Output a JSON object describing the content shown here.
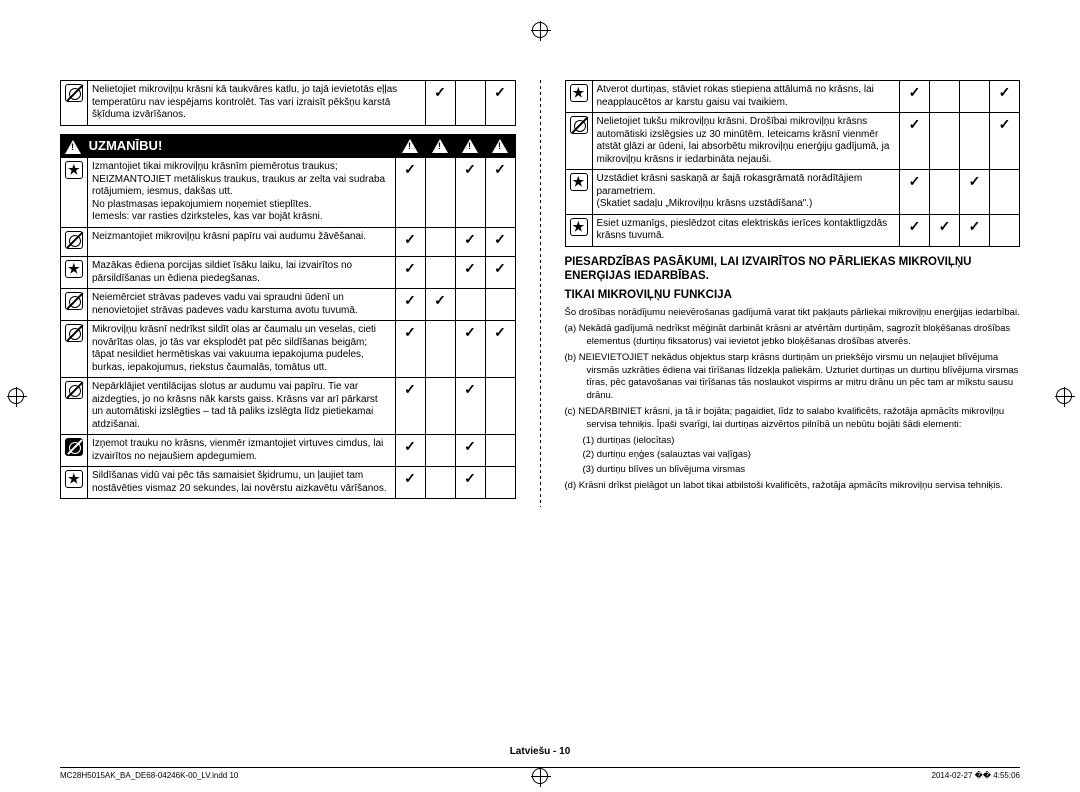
{
  "left": {
    "row0": {
      "text": "Nelietojiet mikroviļņu krāsni kā taukvāres katlu, jo tajā ievietotās eļļas temperatūru nav iespējams kontrolēt. Tas vari izraisīt pēkšņu karstā šķīduma izvārīšanos.",
      "c1": "✓",
      "c2": "",
      "c3": "✓"
    },
    "caution": "UZMANĪBU!",
    "rows": [
      {
        "icon": "star",
        "text": "Izmantojiet tikai mikroviļņu krāsnīm piemērotus traukus; NEIZMANTOJIET metāliskus traukus, traukus ar zelta vai sudraba rotājumiem, iesmus, dakšas utt.\nNo plastmasas iepakojumiem noņemiet stieplītes.\nIemesls: var rasties dzirksteles, kas var bojāt krāsni.",
        "c1": "✓",
        "c2": "",
        "c3": "✓",
        "c4": "✓"
      },
      {
        "icon": "prohibit",
        "text": "Neizmantojiet mikroviļņu krāsni papīru vai audumu žāvēšanai.",
        "c1": "✓",
        "c2": "",
        "c3": "✓",
        "c4": "✓"
      },
      {
        "icon": "star",
        "text": "Mazākas ēdiena porcijas sildiet īsāku laiku, lai izvairītos no pārsildīšanas un ēdiena piedegšanas.",
        "c1": "✓",
        "c2": "",
        "c3": "✓",
        "c4": "✓"
      },
      {
        "icon": "prohibit",
        "text": "Neiemērciet strāvas padeves vadu vai spraudni ūdenī un nenovietojiet strāvas padeves vadu karstuma avotu tuvumā.",
        "c1": "✓",
        "c2": "✓",
        "c3": "",
        "c4": ""
      },
      {
        "icon": "prohibit",
        "text": "Mikroviļņu krāsnī nedrīkst sildīt olas ar čaumalu un veselas, cieti novārītas olas, jo tās var eksplodēt pat pēc sildīšanas beigām; tāpat nesildiet hermētiskas vai vakuuma iepakojuma pudeles, burkas, iepakojumus, riekstus čaumalās, tomātus utt.",
        "c1": "✓",
        "c2": "",
        "c3": "✓",
        "c4": "✓"
      },
      {
        "icon": "prohibit",
        "text": "Nepārklājiet ventilācijas slotus ar audumu vai papīru. Tie var aizdegties, jo no krāsns nāk karsts gaiss. Krāsns var arī pārkarst un automātiski izslēgties – tad tā paliks izslēgta līdz pietiekamai atdzišanai.",
        "c1": "✓",
        "c2": "",
        "c3": "✓",
        "c4": ""
      },
      {
        "icon": "prohibit-filled",
        "text": "Izņemot trauku no krāsns, vienmēr izmantojiet virtuves cimdus, lai izvairītos no nejaušiem apdegumiem.",
        "c1": "✓",
        "c2": "",
        "c3": "✓",
        "c4": ""
      },
      {
        "icon": "star",
        "text": "Sildīšanas vidū vai pēc tās samaisiet šķidrumu, un ļaujiet tam nostāvēties vismaz 20 sekundes, lai novērstu aizkavētu vārīšanos.",
        "c1": "✓",
        "c2": "",
        "c3": "✓",
        "c4": ""
      }
    ]
  },
  "right": {
    "rows": [
      {
        "icon": "star",
        "text": "Atverot durtiņas, stāviet rokas stiepiena attālumā no krāsns, lai neapplaucētos ar karstu gaisu vai tvaikiem.",
        "c1": "✓",
        "c2": "",
        "c3": "",
        "c4": "✓"
      },
      {
        "icon": "prohibit",
        "text": "Nelietojiet tukšu mikroviļņu krāsni. Drošībai mikroviļņu krāsns automātiski izslēgsies uz 30 minūtēm. Ieteicams krāsnī vienmēr atstāt glāzi ar ūdeni, lai absorbētu mikroviļņu enerģiju gadījumā, ja mikroviļņu krāsns ir iedarbināta nejauši.",
        "c1": "✓",
        "c2": "",
        "c3": "",
        "c4": "✓"
      },
      {
        "icon": "star",
        "text": "Uzstādiet krāsni saskaņā ar šajā rokasgrāmatā norādītājiem parametriem.\n(Skatiet sadaļu „Mikroviļņu krāsns uzstādīšana\".)",
        "c1": "✓",
        "c2": "",
        "c3": "✓",
        "c4": ""
      },
      {
        "icon": "star",
        "text": "Esiet uzmanīgs, pieslēdzot citas elektriskās ierīces kontaktligzdās krāsns tuvumā.",
        "c1": "✓",
        "c2": "✓",
        "c3": "✓",
        "c4": ""
      }
    ],
    "sectionTitle1": "PIESARDZĪBAS PASĀKUMI, LAI IZVAIRĪTOS NO PĀRLIEKAS MIKROVIĻŅU ENERĢIJAS IEDARBĪBAS.",
    "sectionTitle2": "TIKAI MIKROVIĻŅU FUNKCIJA",
    "intro": "Šo drošības norādījumu neievērošanas gadījumā varat tikt pakļauts pārliekai mikroviļņu enerģijas iedarbībai.",
    "a": "(a)  Nekādā gadījumā nedrīkst mēģināt darbināt krāsni ar atvērtām durtiņām, sagrozīt bloķēšanas drošības elementus (durtiņu fiksatorus) vai ievietot jebko bloķēšanas drošības atverēs.",
    "b": "(b)  NEIEVIETOJIET nekādus objektus starp krāsns durtiņām un priekšējo virsmu un neļaujiet blīvējuma virsmās uzkrāties ēdiena vai tīrīšanas līdzekļa paliekām. Uzturiet durtiņas un durtiņu blīvējuma virsmas tīras, pēc gatavošanas vai tīrīšanas tās noslaukot vispirms ar mitru drānu un pēc tam ar mīkstu sausu drānu.",
    "c": "(c)  NEDARBINIET krāsni, ja tā ir bojāta; pagaidiet, līdz to salabo kvalificēts, ražotāja apmācīts mikroviļņu servisa tehniķis. Īpaši svarīgi, lai durtiņas aizvērtos pilnībā un nebūtu bojāti šādi elementi:",
    "c1": "(1) durtiņas (ielocītas)",
    "c2": "(2) durtiņu eņģes (salauztas vai vaļīgas)",
    "c3": "(3) durtiņu blīves un blīvējuma virsmas",
    "d": "(d)  Krāsni drīkst pielāgot un labot tikai atbilstoši kvalificēts, ražotāja apmācīts mikroviļņu servisa tehniķis."
  },
  "footer": {
    "lang": "Latviešu - 10",
    "file": "MC28H5015AK_BA_DE68-04246K-00_LV.indd   10",
    "date": "2014-02-27   �� 4:55:06"
  }
}
